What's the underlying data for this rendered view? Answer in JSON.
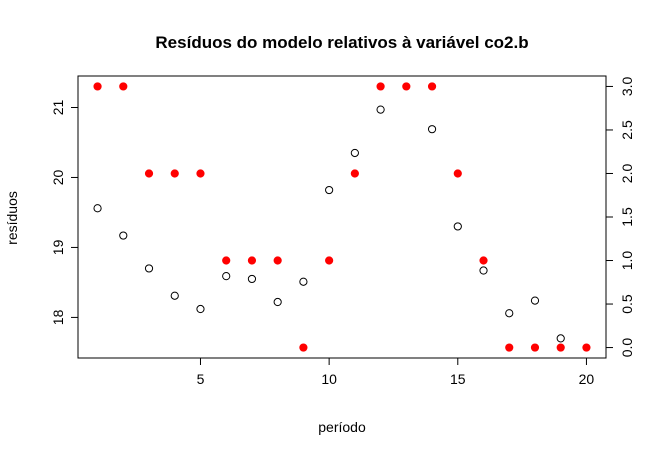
{
  "chart_data": {
    "type": "scatter",
    "title": "Resíduos do modelo relativos à variável co2.b",
    "xlabel": "período",
    "ylabel": "resíduos",
    "xlim": [
      0.24,
      20.76
    ],
    "ylim": [
      17.42,
      21.45
    ],
    "y2lim": [
      -0.12,
      3.12
    ],
    "x_ticks": [
      5,
      10,
      15,
      20
    ],
    "y_ticks": [
      18,
      19,
      20,
      21
    ],
    "y2_ticks": [
      0.0,
      0.5,
      1.0,
      1.5,
      2.0,
      2.5,
      3.0
    ],
    "y2_tick_labels": [
      "0.0",
      "0.5",
      "1.0",
      "1.5",
      "2.0",
      "2.5",
      "3.0"
    ],
    "grid": false,
    "colors": {
      "series1": "#000000",
      "series2": "#ff0000"
    },
    "series": [
      {
        "axis": "left",
        "marker": "open-circle",
        "x": [
          1,
          2,
          3,
          4,
          5,
          6,
          7,
          8,
          9,
          10,
          11,
          12,
          13,
          14,
          15,
          16,
          17,
          18,
          19,
          20
        ],
        "y": [
          19.56,
          19.17,
          18.7,
          18.31,
          18.12,
          18.59,
          18.55,
          18.22,
          18.51,
          19.82,
          20.35,
          20.97,
          null,
          20.69,
          19.3,
          18.67,
          18.06,
          18.24,
          17.7,
          null
        ]
      },
      {
        "axis": "right",
        "marker": "filled-circle",
        "x": [
          1,
          2,
          3,
          4,
          5,
          6,
          7,
          8,
          9,
          10,
          11,
          12,
          13,
          14,
          15,
          16,
          17,
          18,
          19,
          20
        ],
        "y": [
          3,
          3,
          2,
          2,
          2,
          1,
          1,
          1,
          0,
          1,
          2,
          3,
          3,
          3,
          2,
          1,
          0,
          0,
          0,
          0
        ]
      }
    ]
  }
}
